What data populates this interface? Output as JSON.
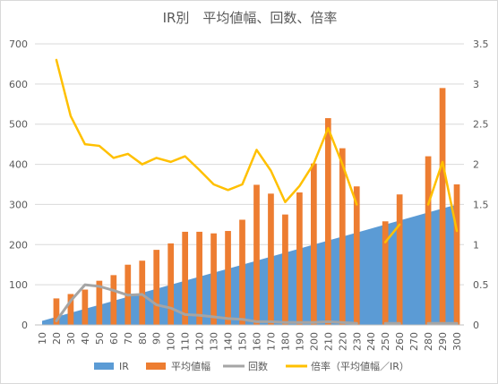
{
  "chart_data": {
    "type": "bar",
    "title": "IR別　平均値幅、回数、倍率",
    "categories": [
      "10",
      "20",
      "30",
      "40",
      "50",
      "60",
      "70",
      "80",
      "90",
      "100",
      "110",
      "120",
      "130",
      "140",
      "150",
      "160",
      "170",
      "180",
      "190",
      "200",
      "210",
      "220",
      "230",
      "240",
      "250",
      "260",
      "270",
      "280",
      "290",
      "300"
    ],
    "series": [
      {
        "name": "IR",
        "chart": "area",
        "axis": "left",
        "color": "#5b9bd5",
        "values": [
          10,
          20,
          30,
          40,
          50,
          60,
          70,
          80,
          90,
          100,
          110,
          120,
          130,
          140,
          150,
          160,
          170,
          180,
          190,
          200,
          210,
          220,
          230,
          240,
          250,
          260,
          270,
          280,
          290,
          300
        ]
      },
      {
        "name": "平均値幅",
        "chart": "bar",
        "axis": "left",
        "color": "#ed7d31",
        "values": [
          null,
          66,
          77,
          88,
          110,
          124,
          150,
          160,
          187,
          203,
          232,
          232,
          228,
          234,
          262,
          349,
          327,
          275,
          330,
          402,
          515,
          440,
          345,
          null,
          258,
          325,
          null,
          420,
          590,
          350
        ]
      },
      {
        "name": "回数",
        "chart": "line",
        "axis": "right",
        "color": "#a5a5a5",
        "values": [
          null,
          0.05,
          0.3,
          0.5,
          0.48,
          0.43,
          0.37,
          0.38,
          0.25,
          0.21,
          0.13,
          0.12,
          0.1,
          0.08,
          0.07,
          0.04,
          0.04,
          0.03,
          0.03,
          0.03,
          0.04,
          0.03,
          0.02,
          null,
          0.02,
          0.02,
          null,
          0.02,
          0.02,
          0.02
        ]
      },
      {
        "name": "倍率（平均値幅／IR）",
        "chart": "line",
        "axis": "right",
        "color": "#ffc000",
        "values": [
          null,
          3.3,
          2.6,
          2.25,
          2.23,
          2.08,
          2.13,
          2.0,
          2.08,
          2.03,
          2.1,
          1.93,
          1.75,
          1.68,
          1.75,
          2.18,
          1.92,
          1.53,
          1.73,
          2.01,
          2.45,
          2.0,
          1.5,
          null,
          1.03,
          1.25,
          null,
          1.5,
          2.03,
          1.17
        ]
      }
    ],
    "y_left": {
      "ylim": [
        0,
        700
      ],
      "ticks": [
        "0",
        "100",
        "200",
        "300",
        "400",
        "500",
        "600",
        "700"
      ]
    },
    "y_right": {
      "ylim": [
        0,
        3.5
      ],
      "ticks": [
        "0",
        "0.5",
        "1",
        "1.5",
        "2",
        "2.5",
        "3",
        "3.5"
      ]
    },
    "grid": true,
    "legend_position": "bottom",
    "legend": [
      "IR",
      "平均値幅",
      "回数",
      "倍率（平均値幅／IR）"
    ]
  }
}
